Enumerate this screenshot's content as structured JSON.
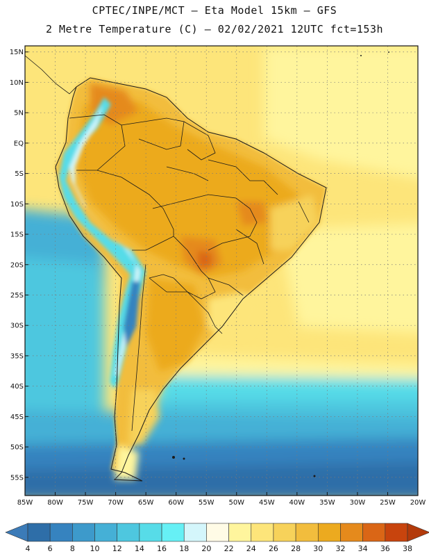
{
  "header": {
    "line1": "CPTEC/INPE/MCT –  Eta Model 15km – GFS",
    "line2": "2 Metre Temperature (C) – 02/02/2021 12UTC fct=153h"
  },
  "map": {
    "lat_labels": [
      "15N",
      "10N",
      "5N",
      "EQ",
      "5S",
      "10S",
      "15S",
      "20S",
      "25S",
      "30S",
      "35S",
      "40S",
      "45S",
      "50S",
      "55S"
    ],
    "lon_labels": [
      "85W",
      "80W",
      "75W",
      "70W",
      "65W",
      "60W",
      "55W",
      "50W",
      "45W",
      "40W",
      "35W",
      "30W",
      "25W",
      "20W"
    ],
    "lat_range": [
      -58,
      16
    ],
    "lon_range": [
      -85,
      -20
    ]
  },
  "colorbar": {
    "tick_labels": [
      "4",
      "6",
      "8",
      "10",
      "12",
      "14",
      "16",
      "18",
      "20",
      "22",
      "24",
      "26",
      "28",
      "30",
      "32",
      "34",
      "36",
      "38"
    ],
    "colors": {
      "low_arrow": "#3b7bb8",
      "high_arrow": "#b33a0a",
      "boxes": [
        "#2e6ea8",
        "#3683bf",
        "#3d9acb",
        "#45b0d6",
        "#4ec7df",
        "#57dce8",
        "#66f0f5",
        "#d4f6fb",
        "#fffbe6",
        "#fff59d",
        "#fde57a",
        "#f7d25a",
        "#f2bd3d",
        "#ecaa1f",
        "#e58a1c",
        "#da6616",
        "#c8440d"
      ]
    }
  }
}
